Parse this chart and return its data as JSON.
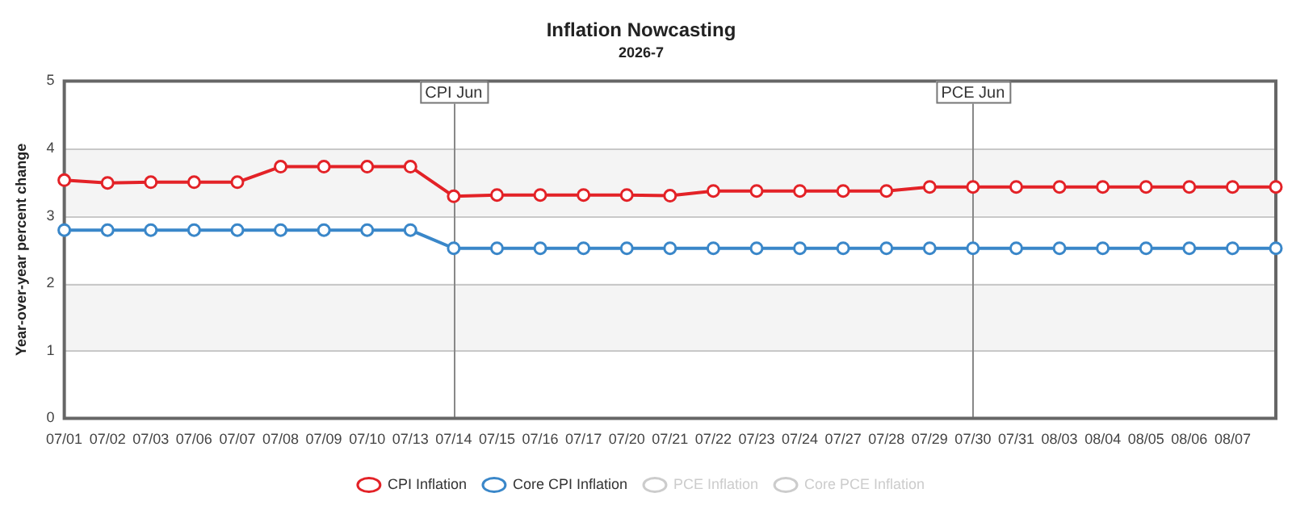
{
  "chart_data": {
    "type": "line",
    "title": "Inflation Nowcasting",
    "subtitle": "2026-7",
    "ylabel": "Year-over-year percent change",
    "categories": [
      "07/01",
      "07/02",
      "07/03",
      "07/06",
      "07/07",
      "07/08",
      "07/09",
      "07/10",
      "07/13",
      "07/14",
      "07/15",
      "07/16",
      "07/17",
      "07/20",
      "07/21",
      "07/22",
      "07/23",
      "07/24",
      "07/27",
      "07/28",
      "07/29",
      "07/30",
      "07/31",
      "08/03",
      "08/04",
      "08/05",
      "08/06",
      "08/07",
      null
    ],
    "series": [
      {
        "name": "CPI Inflation",
        "color": "#e32227",
        "values": [
          3.53,
          3.49,
          3.5,
          3.5,
          3.5,
          3.73,
          3.73,
          3.73,
          3.73,
          3.29,
          3.31,
          3.31,
          3.31,
          3.31,
          3.3,
          3.37,
          3.37,
          3.37,
          3.37,
          3.37,
          3.43,
          3.43,
          3.43,
          3.43,
          3.43,
          3.43,
          3.43,
          3.43,
          3.43
        ]
      },
      {
        "name": "Core CPI Inflation",
        "color": "#3a87c9",
        "values": [
          2.79,
          2.79,
          2.79,
          2.79,
          2.79,
          2.79,
          2.79,
          2.79,
          2.79,
          2.52,
          2.52,
          2.52,
          2.52,
          2.52,
          2.52,
          2.52,
          2.52,
          2.52,
          2.52,
          2.52,
          2.52,
          2.52,
          2.52,
          2.52,
          2.52,
          2.52,
          2.52,
          2.52,
          2.52
        ]
      },
      {
        "name": "PCE Inflation",
        "color": "#cccccc",
        "values": [
          null,
          null,
          null,
          null,
          null,
          null,
          null,
          null,
          null,
          null,
          null,
          null,
          null,
          null,
          null,
          null,
          null,
          null,
          null,
          null,
          null,
          null,
          null,
          null,
          null,
          null,
          null,
          null,
          null
        ]
      },
      {
        "name": "Core PCE Inflation",
        "color": "#cccccc",
        "values": [
          null,
          null,
          null,
          null,
          null,
          null,
          null,
          null,
          null,
          null,
          null,
          null,
          null,
          null,
          null,
          null,
          null,
          null,
          null,
          null,
          null,
          null,
          null,
          null,
          null,
          null,
          null,
          null,
          null
        ]
      }
    ],
    "ylim": [
      0,
      5
    ],
    "yticks": [
      0,
      1,
      2,
      3,
      4,
      5
    ],
    "grid": "y",
    "legend": "bottom",
    "marker": "circle",
    "line_style": "solid",
    "bands": [
      {
        "axis": "y",
        "from": 1,
        "to": 2,
        "color": "#f4f4f4"
      },
      {
        "axis": "y",
        "from": 3,
        "to": 4,
        "color": "#f4f4f4"
      }
    ],
    "ref_lines": [
      {
        "axis": "x",
        "value": "07/14",
        "label": "CPI Jun",
        "color": "#888888"
      },
      {
        "axis": "x",
        "value": "07/30",
        "label": "PCE Jun",
        "color": "#888888"
      }
    ]
  }
}
